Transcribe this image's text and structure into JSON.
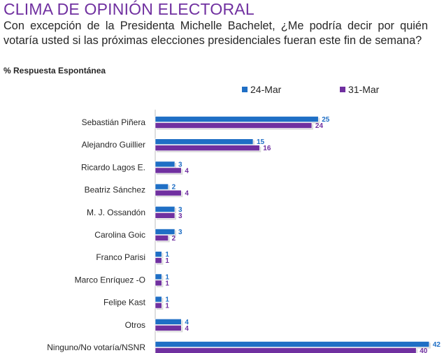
{
  "header": {
    "title": "CLIMA DE OPINIÓN ELECTORAL",
    "question": "Con excepción de la Presidenta Michelle Bachelet, ¿Me podría decir por quién votaría usted si las próximas elecciones presidenciales fueran este fin de semana?",
    "subtitle": "% Respuesta Espontánea"
  },
  "colors": {
    "title": "#7030a0",
    "series_1": "#1f6fc5",
    "series_2": "#7030a0",
    "axis": "#bfbfbf"
  },
  "chart_data": {
    "type": "bar",
    "orientation": "horizontal",
    "categories": [
      "Sebastián Piñera",
      "Alejandro  Guillier",
      "Ricardo Lagos E.",
      "Beatriz Sánchez",
      "M. J. Ossandón",
      "Carolina Goic",
      "Franco Parisi",
      "Marco Enríquez -O",
      "Felipe Kast",
      "Otros",
      "Ninguno/No votaría/NSNR"
    ],
    "series": [
      {
        "name": "24-Mar",
        "values": [
          25,
          15,
          3,
          2,
          3,
          3,
          1,
          1,
          1,
          4,
          42
        ]
      },
      {
        "name": "31-Mar",
        "values": [
          24,
          16,
          4,
          4,
          3,
          2,
          1,
          1,
          1,
          4,
          40
        ]
      }
    ],
    "xlim": [
      0,
      42
    ],
    "data_labels": true,
    "grid": false,
    "legend_position": "top-right"
  }
}
